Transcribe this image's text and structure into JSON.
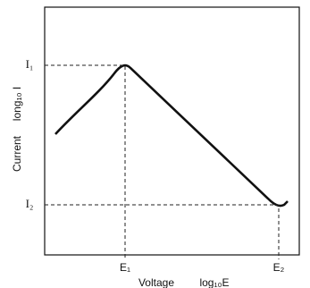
{
  "y_axis": {
    "label": "Current",
    "unit": "long₁₀ I",
    "markers": [
      "I₁",
      "I₂"
    ]
  },
  "x_axis": {
    "label": "Voltage",
    "unit": "log₁₀E",
    "markers": [
      "E₁",
      "E₂"
    ]
  }
}
